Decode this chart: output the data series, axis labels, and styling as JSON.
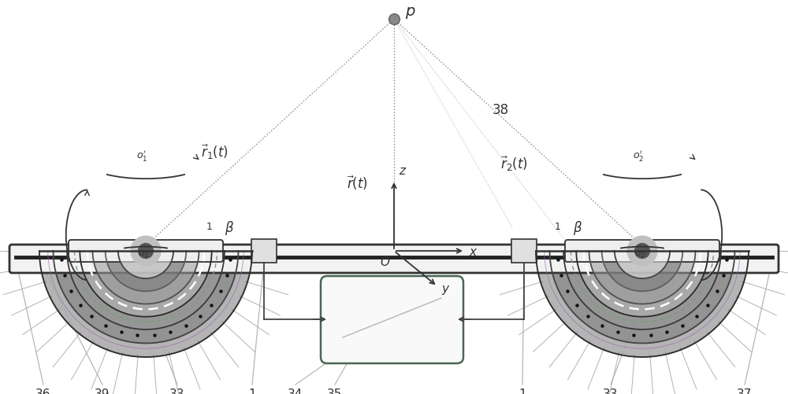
{
  "bg_color": "#ffffff",
  "lc": "#333333",
  "gray": "#999999",
  "light_gray": "#bbbbbb",
  "green": "#7a9e7a",
  "purple": "#9988aa",
  "fig_w": 10.0,
  "fig_h": 5.02,
  "dpi": 100
}
